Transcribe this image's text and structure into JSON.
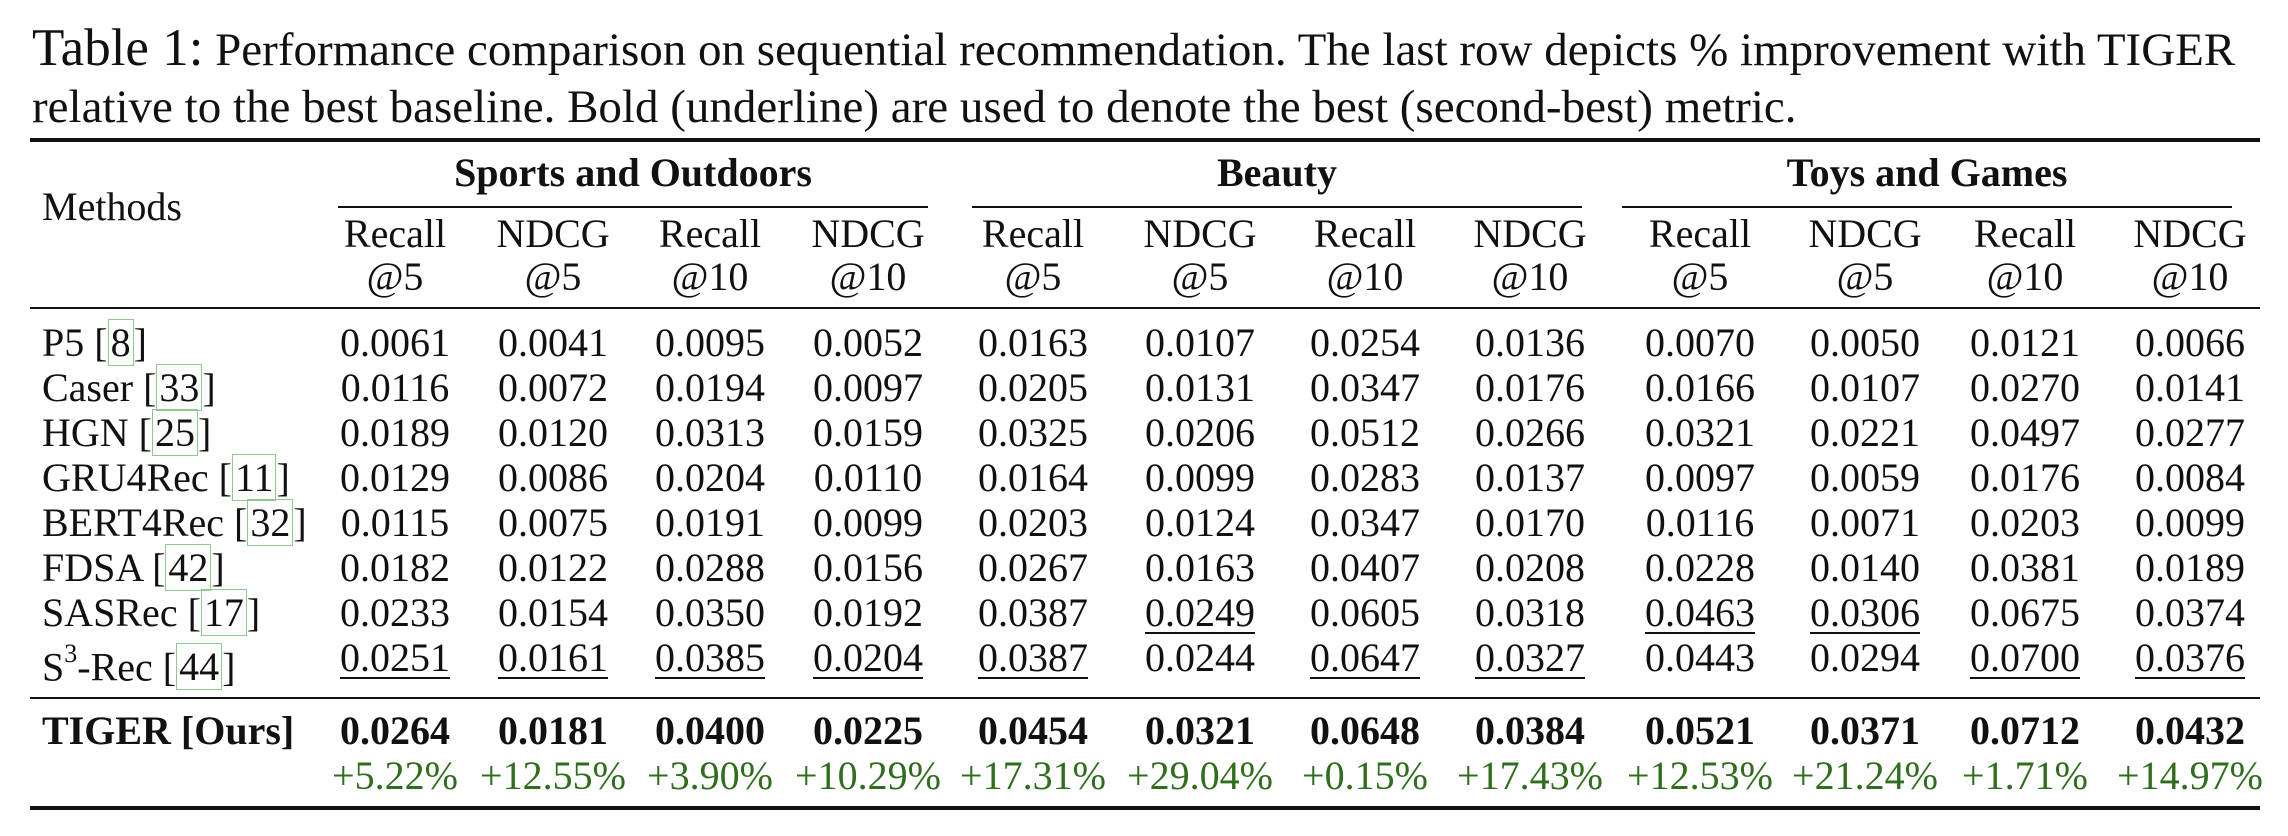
{
  "caption": {
    "label": "Table 1:",
    "text": " Performance comparison on sequential recommendation. The last row depicts % improvement with TIGER relative to the best baseline. Bold (underline) are used to denote the best (second-best) metric."
  },
  "table": {
    "methods_header": "Methods",
    "groups": [
      "Sports and Outdoors",
      "Beauty",
      "Toys and Games"
    ],
    "columns": [
      {
        "top": "Recall",
        "bottom": "@5"
      },
      {
        "top": "NDCG",
        "bottom": "@5"
      },
      {
        "top": "Recall",
        "bottom": "@10"
      },
      {
        "top": "NDCG",
        "bottom": "@10"
      }
    ],
    "rows": [
      {
        "name": "P5",
        "ref": "8",
        "values": [
          "0.0061",
          "0.0041",
          "0.0095",
          "0.0052",
          "0.0163",
          "0.0107",
          "0.0254",
          "0.0136",
          "0.0070",
          "0.0050",
          "0.0121",
          "0.0066"
        ],
        "underline": []
      },
      {
        "name": "Caser",
        "ref": "33",
        "values": [
          "0.0116",
          "0.0072",
          "0.0194",
          "0.0097",
          "0.0205",
          "0.0131",
          "0.0347",
          "0.0176",
          "0.0166",
          "0.0107",
          "0.0270",
          "0.0141"
        ],
        "underline": []
      },
      {
        "name": "HGN",
        "ref": "25",
        "values": [
          "0.0189",
          "0.0120",
          "0.0313",
          "0.0159",
          "0.0325",
          "0.0206",
          "0.0512",
          "0.0266",
          "0.0321",
          "0.0221",
          "0.0497",
          "0.0277"
        ],
        "underline": []
      },
      {
        "name": "GRU4Rec",
        "ref": "11",
        "values": [
          "0.0129",
          "0.0086",
          "0.0204",
          "0.0110",
          "0.0164",
          "0.0099",
          "0.0283",
          "0.0137",
          "0.0097",
          "0.0059",
          "0.0176",
          "0.0084"
        ],
        "underline": []
      },
      {
        "name": "BERT4Rec",
        "ref": "32",
        "values": [
          "0.0115",
          "0.0075",
          "0.0191",
          "0.0099",
          "0.0203",
          "0.0124",
          "0.0347",
          "0.0170",
          "0.0116",
          "0.0071",
          "0.0203",
          "0.0099"
        ],
        "underline": []
      },
      {
        "name": "FDSA",
        "ref": "42",
        "values": [
          "0.0182",
          "0.0122",
          "0.0288",
          "0.0156",
          "0.0267",
          "0.0163",
          "0.0407",
          "0.0208",
          "0.0228",
          "0.0140",
          "0.0381",
          "0.0189"
        ],
        "underline": []
      },
      {
        "name": "SASRec",
        "ref": "17",
        "values": [
          "0.0233",
          "0.0154",
          "0.0350",
          "0.0192",
          "0.0387",
          "0.0249",
          "0.0605",
          "0.0318",
          "0.0463",
          "0.0306",
          "0.0675",
          "0.0374"
        ],
        "underline": [
          5,
          8,
          9
        ]
      },
      {
        "name": "S",
        "sup": "3",
        "name_suffix": "-Rec",
        "ref": "44",
        "values": [
          "0.0251",
          "0.0161",
          "0.0385",
          "0.0204",
          "0.0387",
          "0.0244",
          "0.0647",
          "0.0327",
          "0.0443",
          "0.0294",
          "0.0700",
          "0.0376"
        ],
        "underline": [
          0,
          1,
          2,
          3,
          4,
          6,
          7,
          10,
          11
        ]
      }
    ],
    "ours": {
      "name": "TIGER [Ours]",
      "values": [
        "0.0264",
        "0.0181",
        "0.0400",
        "0.0225",
        "0.0454",
        "0.0321",
        "0.0648",
        "0.0384",
        "0.0521",
        "0.0371",
        "0.0712",
        "0.0432"
      ],
      "improvements": [
        "+5.22%",
        "+12.55%",
        "+3.90%",
        "+10.29%",
        "+17.31%",
        "+29.04%",
        "+0.15%",
        "+17.43%",
        "+12.53%",
        "+21.24%",
        "+1.71%",
        "+14.97%"
      ]
    },
    "colors": {
      "text": "#111111",
      "improvement": "#2e6e1c",
      "reference_box": "#8ec98e"
    }
  }
}
